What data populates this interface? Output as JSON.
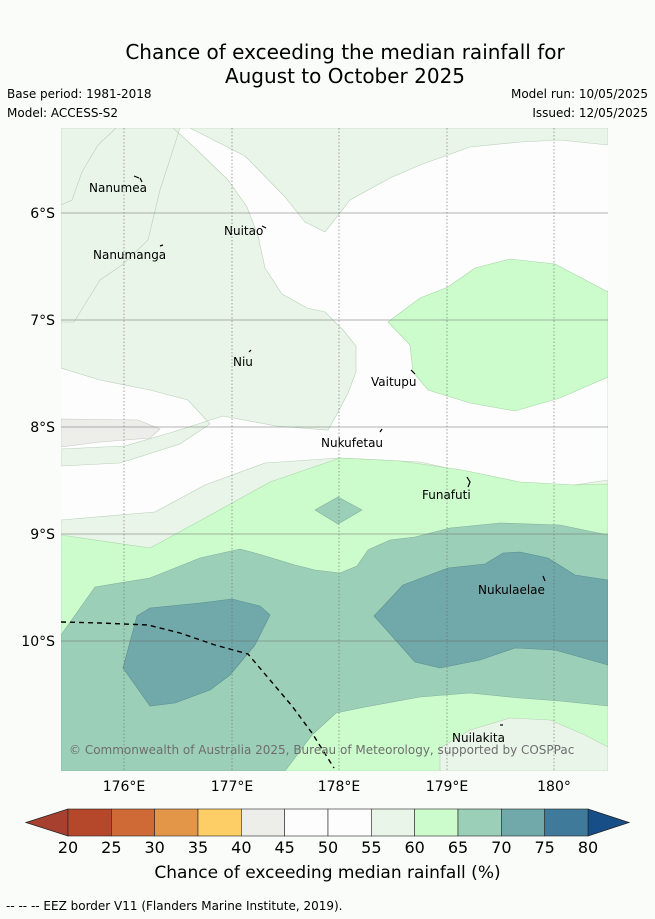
{
  "header": {
    "title_line1": "Chance of exceeding the median rainfall for",
    "title_line2": "August to October 2025",
    "base_period": "Base period: 1981-2018",
    "model": "Model: ACCESS-S2",
    "model_run": "Model run: 10/05/2025",
    "issued": "Issued: 12/05/2025"
  },
  "map": {
    "lat_labels": [
      "6°S",
      "7°S",
      "8°S",
      "9°S",
      "10°S"
    ],
    "lon_labels": [
      "176°E",
      "177°E",
      "178°E",
      "179°E",
      "180°"
    ],
    "places": [
      {
        "name": "Nanumea"
      },
      {
        "name": "Nuitao"
      },
      {
        "name": "Nanumanga"
      },
      {
        "name": "Niu"
      },
      {
        "name": "Vaitupu"
      },
      {
        "name": "Nukufetau"
      },
      {
        "name": "Funafuti"
      },
      {
        "name": "Nukulaelae"
      },
      {
        "name": "Nuilakita"
      }
    ],
    "copyright": "© Commonwealth of Australia 2025, Bureau of Meteorology, supported by COSPPac"
  },
  "colorbar": {
    "labels": [
      "20",
      "25",
      "30",
      "35",
      "40",
      "45",
      "50",
      "55",
      "60",
      "65",
      "70",
      "75",
      "80"
    ],
    "colors": [
      "#b5482a",
      "#cf6a36",
      "#e39648",
      "#fdcd66",
      "#ededea",
      "#fcfdfc",
      "#fcfdfc",
      "#e9f5e9",
      "#ccfccc",
      "#9ccfb8",
      "#71a8a9",
      "#3f7a9a"
    ],
    "low_color": "#a84030",
    "high_color": "#184e88",
    "title": "Chance of exceeding median rainfall (%)"
  },
  "legend": {
    "text": "-- -- -- EEZ border V11 (Flanders Marine Institute, 2019)."
  }
}
